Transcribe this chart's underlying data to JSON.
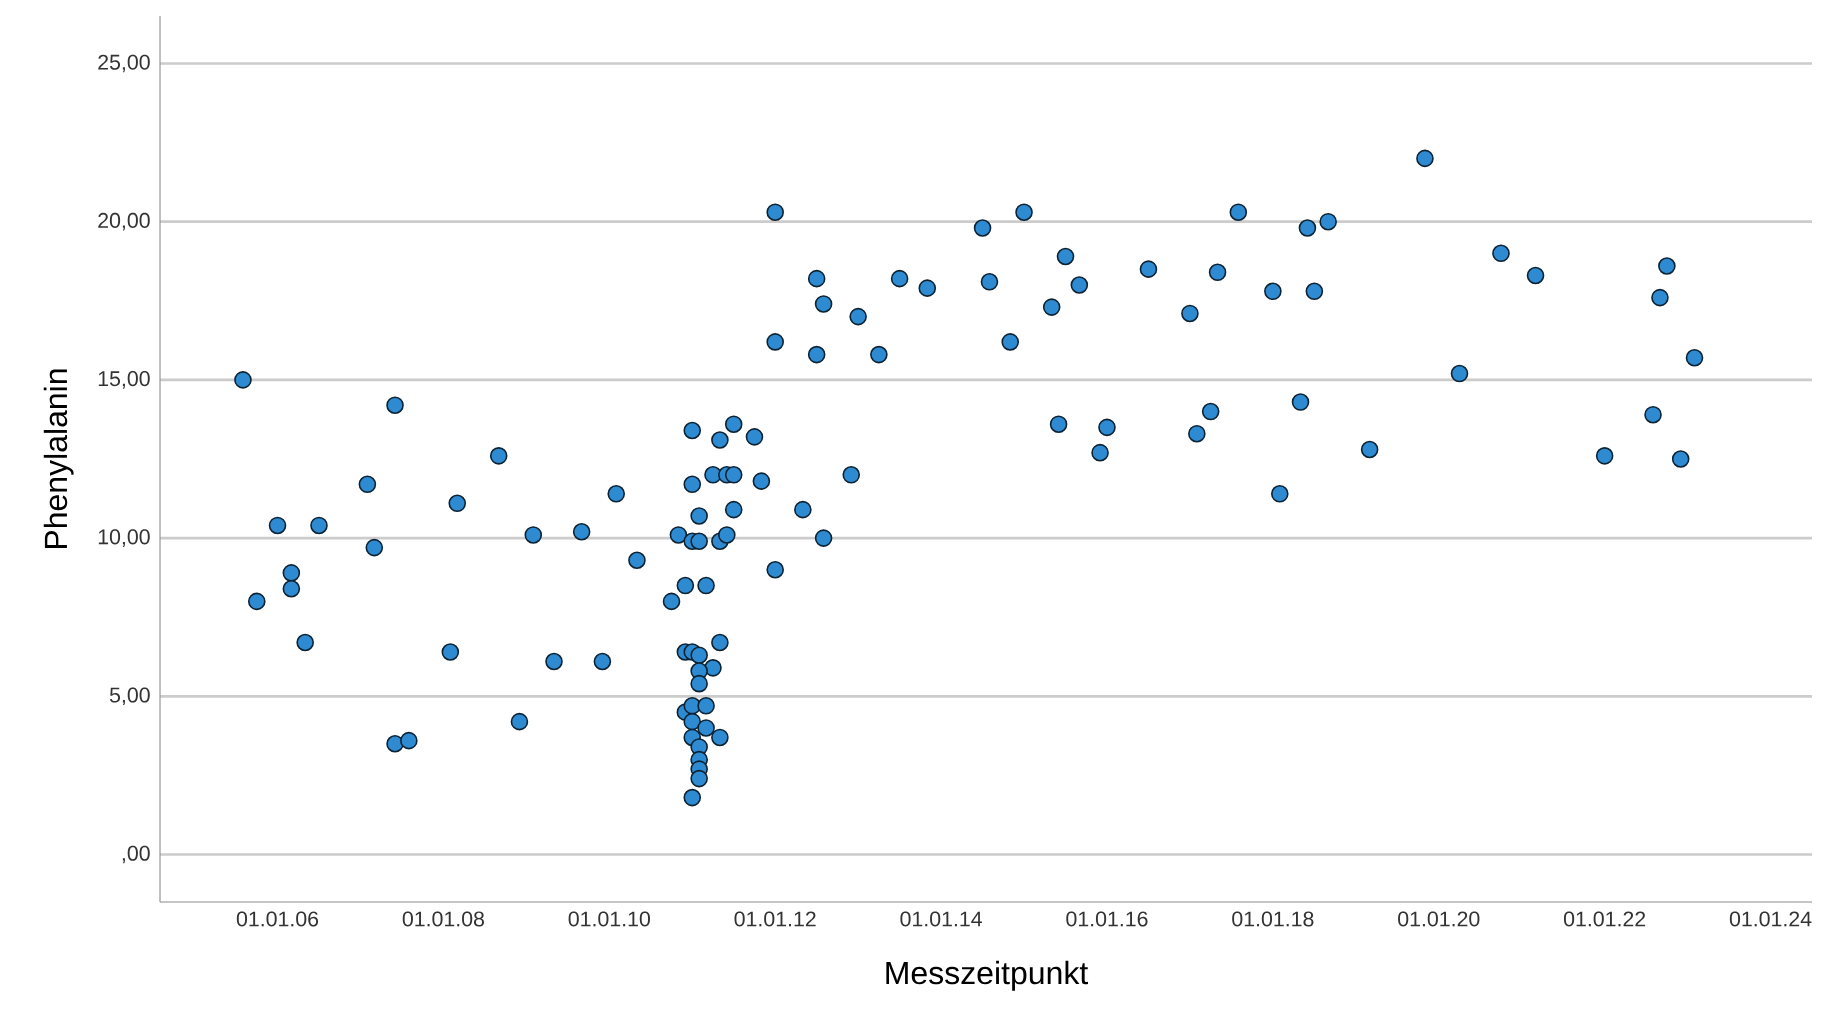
{
  "chart_data": {
    "type": "scatter",
    "xlabel": "Messzeitpunkt",
    "ylabel": "Phenylalanin",
    "color": "#2f8bd1",
    "marker": "circle",
    "grid": "y",
    "xlim": [
      "2004-08",
      "2024-07"
    ],
    "ylim": [
      -1.5,
      26.5
    ],
    "xticks": [
      {
        "value": "2006-01-01",
        "label": "01.01.06"
      },
      {
        "value": "2008-01-01",
        "label": "01.01.08"
      },
      {
        "value": "2010-01-01",
        "label": "01.01.10"
      },
      {
        "value": "2012-01-01",
        "label": "01.01.12"
      },
      {
        "value": "2014-01-01",
        "label": "01.01.14"
      },
      {
        "value": "2016-01-01",
        "label": "01.01.16"
      },
      {
        "value": "2018-01-01",
        "label": "01.01.18"
      },
      {
        "value": "2020-01-01",
        "label": "01.01.20"
      },
      {
        "value": "2022-01-01",
        "label": "01.01.22"
      },
      {
        "value": "2024-01-01",
        "label": "01.01.24"
      }
    ],
    "yticks": [
      {
        "value": 0,
        "label": ",00"
      },
      {
        "value": 5,
        "label": "5,00"
      },
      {
        "value": 10,
        "label": "10,00"
      },
      {
        "value": 15,
        "label": "15,00"
      },
      {
        "value": 20,
        "label": "20,00"
      },
      {
        "value": 25,
        "label": "25,00"
      }
    ],
    "x": [
      "2005-08",
      "2007-06",
      "2006-01",
      "2006-07",
      "2007-02",
      "2007-03",
      "2006-03",
      "2006-03",
      "2005-10",
      "2006-05",
      "2008-03",
      "2008-09",
      "2007-06",
      "2007-08",
      "2008-02",
      "2009-02",
      "2009-09",
      "2008-12",
      "2009-05",
      "2009-12",
      "2010-02",
      "2010-05",
      "2011-01",
      "2011-05",
      "2011-07",
      "2011-10",
      "2011-04",
      "2011-06",
      "2011-07",
      "2011-01",
      "2011-11",
      "2012-12",
      "2011-02",
      "2011-07",
      "2012-05",
      "2010-11",
      "2011-01",
      "2011-02",
      "2011-05",
      "2011-06",
      "2012-08",
      "2010-12",
      "2011-03",
      "2010-10",
      "2012-01",
      "2010-12",
      "2011-01",
      "2011-02",
      "2011-05",
      "2011-04",
      "2011-02",
      "2011-02",
      "2010-12",
      "2011-01",
      "2011-03",
      "2011-01",
      "2011-03",
      "2011-05",
      "2011-01",
      "2011-02",
      "2011-02",
      "2011-02",
      "2011-02",
      "2011-01",
      "2012-01",
      "2012-07",
      "2012-08",
      "2013-01",
      "2012-01",
      "2012-07",
      "2013-04",
      "2013-07",
      "2013-11",
      "2014-07",
      "2015-01",
      "2015-07",
      "2014-08",
      "2015-09",
      "2015-05",
      "2014-11",
      "2016-07",
      "2015-06",
      "2016-01",
      "2015-12",
      "2017-05",
      "2017-08",
      "2017-01",
      "2018-01",
      "2018-07",
      "2018-06",
      "2018-09",
      "2019-11",
      "2020-10",
      "2021-03",
      "2022-10",
      "2022-09",
      "2023-02",
      "2020-04",
      "2017-04",
      "2017-02",
      "2018-05",
      "2019-03",
      "2018-02",
      "2022-08",
      "2022-01",
      "2022-12"
    ],
    "values": [
      15.0,
      14.2,
      10.4,
      10.4,
      11.7,
      9.7,
      8.9,
      8.4,
      8.0,
      6.7,
      11.1,
      12.6,
      3.5,
      3.6,
      6.4,
      10.1,
      10.2,
      4.2,
      6.1,
      6.1,
      11.4,
      9.3,
      13.4,
      13.1,
      13.6,
      13.2,
      12.0,
      12.0,
      12.0,
      11.7,
      11.8,
      12.0,
      10.7,
      10.9,
      10.9,
      10.1,
      9.9,
      9.9,
      9.9,
      10.1,
      10.0,
      8.5,
      8.5,
      8.0,
      9.0,
      6.4,
      6.4,
      6.3,
      6.7,
      5.9,
      5.8,
      5.4,
      4.5,
      4.7,
      4.7,
      4.2,
      4.0,
      3.7,
      3.7,
      3.4,
      3.0,
      2.7,
      2.4,
      1.8,
      20.3,
      18.2,
      17.4,
      17.0,
      16.2,
      15.8,
      15.8,
      18.2,
      17.9,
      19.8,
      20.3,
      18.9,
      18.1,
      18.0,
      17.3,
      16.2,
      18.5,
      13.6,
      13.5,
      12.7,
      18.4,
      20.3,
      17.1,
      17.8,
      17.8,
      19.8,
      20.0,
      22.0,
      19.0,
      18.3,
      18.6,
      17.6,
      15.7,
      15.2,
      14.0,
      13.3,
      14.3,
      12.8,
      11.4,
      13.9,
      12.6,
      12.5
    ]
  }
}
